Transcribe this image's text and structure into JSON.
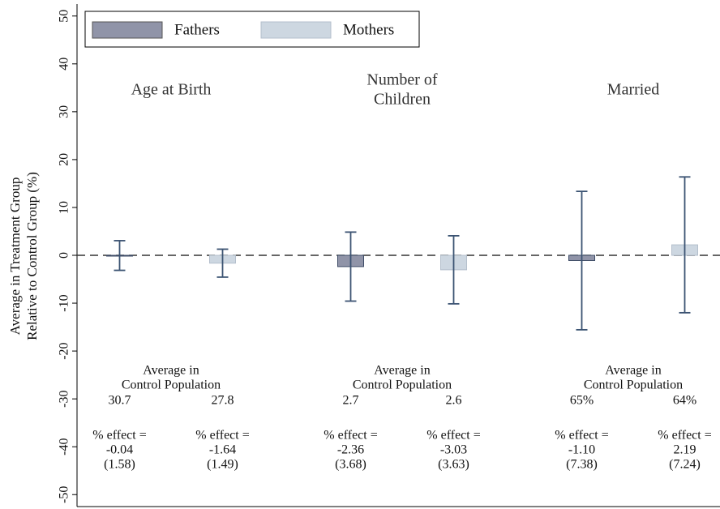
{
  "chart_data": {
    "type": "bar",
    "y_label": [
      "Average in Treatment Group",
      "Relative to Control Group (%)"
    ],
    "categories": [
      [
        "Age at Birth"
      ],
      [
        "Number of",
        "Children"
      ],
      [
        "Married"
      ]
    ],
    "control_label": [
      "Average in",
      "Control Population"
    ],
    "effect_label": "% effect =",
    "series": [
      {
        "name": "Fathers",
        "color": "#9094a8",
        "values": [
          -0.04,
          -2.36,
          -1.1
        ],
        "value_labels": [
          "-0.04",
          "-2.36",
          "-1.10"
        ],
        "errors": [
          3.1,
          7.21,
          14.46
        ],
        "se_labels": [
          "(1.58)",
          "(3.68)",
          "(7.38)"
        ],
        "control_means": [
          "30.7",
          "2.7",
          "65%"
        ]
      },
      {
        "name": "Mothers",
        "color": "#cdd7e1",
        "values": [
          -1.64,
          -3.03,
          2.19
        ],
        "value_labels": [
          "-1.64",
          "-3.03",
          "2.19"
        ],
        "errors": [
          2.92,
          7.11,
          14.19
        ],
        "se_labels": [
          "(1.49)",
          "(3.63)",
          "(7.24)"
        ],
        "control_means": [
          "27.8",
          "2.6",
          "64%"
        ]
      }
    ],
    "error_color": "#3b5372",
    "reference_line": 0,
    "ylim": [
      -52.5,
      52.5
    ],
    "yticks": [
      -50,
      -40,
      -30,
      -20,
      -10,
      0,
      10,
      20,
      30,
      40,
      50
    ],
    "legend": "top-left"
  }
}
